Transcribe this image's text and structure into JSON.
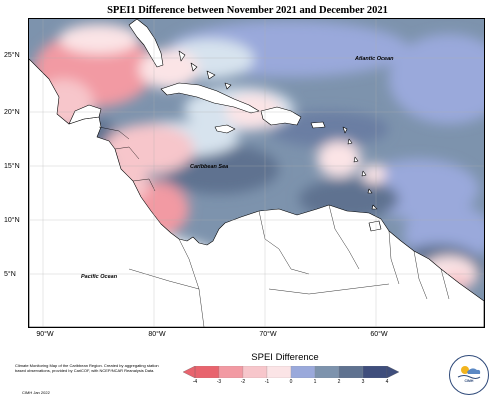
{
  "title": "SPEI1 Difference between November 2021 and December 2021",
  "axes": {
    "latitude_labels": [
      "25°N",
      "20°N",
      "15°N",
      "10°N",
      "5°N"
    ],
    "longitude_labels": [
      "90°W",
      "80°W",
      "70°W",
      "60°W"
    ]
  },
  "map_labels": {
    "atlantic": "Atlantic Ocean",
    "caribbean": "Caribbean Sea",
    "pacific": "Pacific Ocean"
  },
  "legend": {
    "title": "SPEI Difference",
    "ticks": [
      "-4",
      "-3",
      "-2",
      "-1",
      "0",
      "1",
      "2",
      "3",
      "4"
    ],
    "colors": [
      "#e8646e",
      "#f29aa3",
      "#f7c6cb",
      "#fbe4e6",
      "#d7e3ee",
      "#9aa9db",
      "#7d93ad",
      "#5f7290",
      "#3f4e7c"
    ]
  },
  "credit": {
    "text": "Climate Monitoring Map of the Caribbean Region. Created by aggregating station based observations, provided by CariCOF, with NCEP/NCAR Reanalysis Data.",
    "date": "CIMH Jan 2022"
  },
  "logo": {
    "text": "CIMH"
  },
  "colors": {
    "deep_blue": "#5f7290",
    "mid_blue": "#7d93ad",
    "periwinkle": "#9aa9db",
    "light_blue": "#d7e3ee",
    "light_pink": "#fbe4e6",
    "pink": "#f29aa3",
    "land": "#ffffff"
  }
}
